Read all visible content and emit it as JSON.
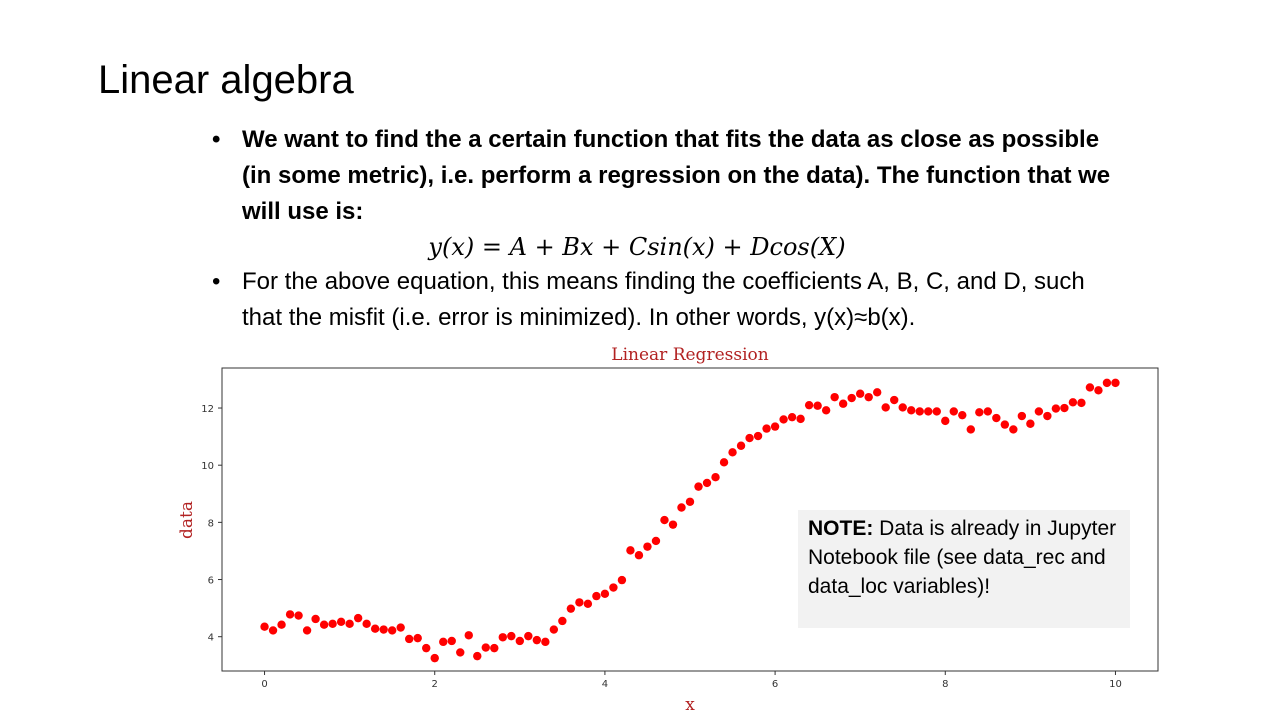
{
  "slide": {
    "title": "Linear algebra",
    "bullet1": "We want to find the a certain function that fits the data as close as possible (in some metric), i.e. perform a regression on the data). The function that we will use is:",
    "equation": "y(x) = A + Bx + Csin(x) + Dcos(X)",
    "bullet2": "For the above equation, this means finding the coefficients A, B, C, and D, such that the misfit (i.e. error is minimized). In other words, y(x)≈b(x)."
  },
  "note": {
    "label": "NOTE:",
    "text": "Data is already in Jupyter Notebook file (see data_rec and data_loc variables)!"
  },
  "colors": {
    "points": "#ff0000",
    "title": "#b22222",
    "axes": "#333333"
  },
  "chart_data": {
    "type": "scatter",
    "title": "Linear Regression",
    "xlabel": "x",
    "ylabel": "data",
    "xlim": [
      -0.5,
      10.5
    ],
    "ylim": [
      2.8,
      13.4
    ],
    "xticks": [
      0,
      2,
      4,
      6,
      8,
      10
    ],
    "yticks": [
      4,
      6,
      8,
      10,
      12
    ],
    "grid": false,
    "series": [
      {
        "x": [
          0.0,
          0.1,
          0.2,
          0.3,
          0.4,
          0.5,
          0.6,
          0.7,
          0.8,
          0.9,
          1.0,
          1.1,
          1.2,
          1.3,
          1.4,
          1.5,
          1.6,
          1.7,
          1.8,
          1.9,
          2.0,
          2.1,
          2.2,
          2.3,
          2.4,
          2.5,
          2.6,
          2.7,
          2.8,
          2.9,
          3.0,
          3.1,
          3.2,
          3.3,
          3.4,
          3.5,
          3.6,
          3.7,
          3.8,
          3.9,
          4.0,
          4.1,
          4.2,
          4.3,
          4.4,
          4.5,
          4.6,
          4.7,
          4.8,
          4.9,
          5.0,
          5.1,
          5.2,
          5.3,
          5.4,
          5.5,
          5.6,
          5.7,
          5.8,
          5.9,
          6.0,
          6.1,
          6.2,
          6.3,
          6.4,
          6.5,
          6.6,
          6.7,
          6.8,
          6.9,
          7.0,
          7.1,
          7.2,
          7.3,
          7.4,
          7.5,
          7.6,
          7.7,
          7.8,
          7.9,
          8.0,
          8.1,
          8.2,
          8.3,
          8.4,
          8.5,
          8.6,
          8.7,
          8.8,
          8.9,
          9.0,
          9.1,
          9.2,
          9.3,
          9.4,
          9.5,
          9.6,
          9.7,
          9.8,
          9.9,
          10.0
        ],
        "y": [
          4.35,
          4.22,
          4.42,
          4.78,
          4.74,
          4.22,
          4.62,
          4.42,
          4.45,
          4.52,
          4.45,
          4.65,
          4.45,
          4.28,
          4.25,
          4.22,
          4.32,
          3.92,
          3.95,
          3.6,
          3.25,
          3.82,
          3.85,
          3.45,
          4.05,
          3.32,
          3.62,
          3.6,
          3.98,
          4.02,
          3.85,
          4.02,
          3.88,
          3.82,
          4.25,
          4.55,
          4.98,
          5.2,
          5.15,
          5.42,
          5.5,
          5.72,
          5.98,
          7.02,
          6.85,
          7.15,
          7.35,
          8.08,
          7.92,
          8.52,
          8.72,
          9.25,
          9.38,
          9.58,
          10.1,
          10.45,
          10.68,
          10.95,
          11.02,
          11.28,
          11.35,
          11.6,
          11.68,
          11.62,
          12.1,
          12.08,
          11.92,
          12.38,
          12.15,
          12.35,
          12.5,
          12.38,
          12.55,
          12.02,
          12.28,
          12.02,
          11.92,
          11.88,
          11.88,
          11.88,
          11.55,
          11.88,
          11.75,
          11.25,
          11.85,
          11.88,
          11.65,
          11.42,
          11.25,
          11.72,
          11.45,
          11.88,
          11.72,
          11.98,
          12.0,
          12.2,
          12.18,
          12.72,
          12.62,
          12.88,
          12.88
        ]
      }
    ]
  }
}
